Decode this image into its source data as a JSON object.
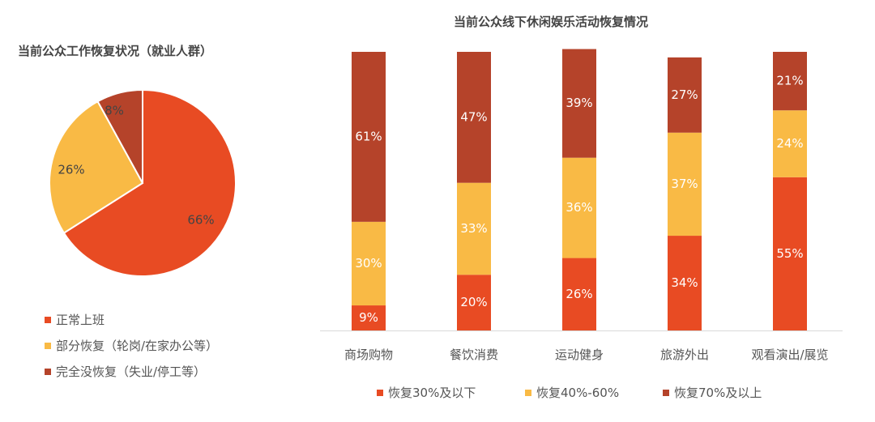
{
  "colors": {
    "low": "#E84B23",
    "mid": "#F9BA45",
    "high": "#B5432A"
  },
  "chart_data": [
    {
      "type": "pie",
      "title": "当前公众工作恢复状况（就业人群）",
      "slices": [
        {
          "label": "正常上班",
          "value": 66,
          "data_label": "66%",
          "color": "#E84B23"
        },
        {
          "label": "部分恢复（轮岗/在家办公等）",
          "value": 26,
          "data_label": "26%",
          "color": "#F9BA45"
        },
        {
          "label": "完全没恢复（失业/停工等）",
          "value": 8,
          "data_label": "8%",
          "color": "#B5432A"
        }
      ],
      "legend_placement": "bottom"
    },
    {
      "type": "bar",
      "stacked": true,
      "title": "当前公众线下休闲娱乐活动恢复情况",
      "categories": [
        "商场购物",
        "餐饮消费",
        "运动健身",
        "旅游外出",
        "观看演出/展览"
      ],
      "series": [
        {
          "name": "恢复30%及以下",
          "color": "#E84B23",
          "values": [
            9,
            20,
            26,
            34,
            55
          ]
        },
        {
          "name": "恢复40%-60%",
          "color": "#F9BA45",
          "values": [
            30,
            33,
            36,
            37,
            24
          ]
        },
        {
          "name": "恢复70%及以上",
          "color": "#B5432A",
          "values": [
            61,
            47,
            39,
            27,
            21
          ]
        }
      ],
      "ylim": [
        0,
        100
      ],
      "legend_placement": "bottom",
      "grid": false
    }
  ]
}
